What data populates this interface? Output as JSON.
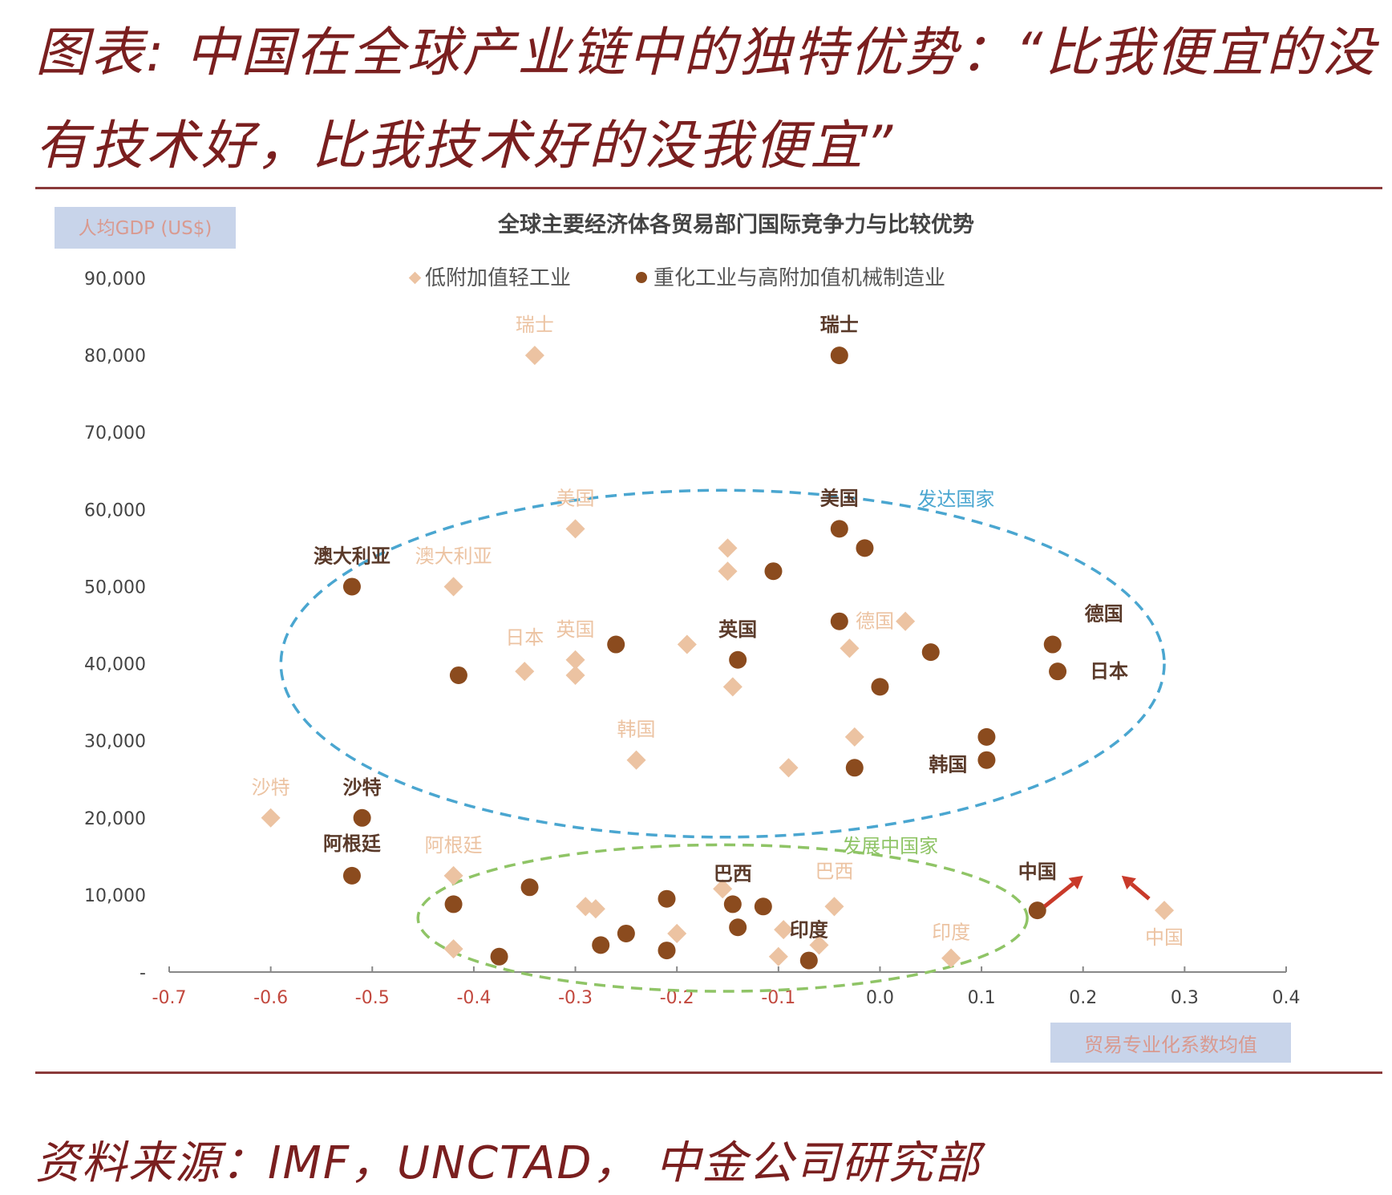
{
  "header": {
    "title": "图表: 中国在全球产业链中的独特优势：“比我便宜的没有技术好，比我技术好的没我便宜”"
  },
  "footer": {
    "source": "资料来源：IMF，UNCTAD， 中金公司研究部"
  },
  "colors": {
    "title": "#7a1f1f",
    "light_series": "#ecc3a2",
    "heavy_series": "#8b4b1e",
    "developed_ellipse": "#4aa6d0",
    "developing_ellipse": "#8fc466",
    "arrow": "#c93a2a",
    "negative_tick": "#c2483e",
    "label_box": "#c8d4ea"
  },
  "chart_data": {
    "type": "scatter",
    "title": "全球主要经济体各贸易部门国际竞争力与比较优势",
    "xlabel": "贸易专业化系数均值",
    "ylabel": "人均GDP (US$)",
    "xlim": [
      -0.7,
      0.4
    ],
    "ylim": [
      0,
      90000
    ],
    "x_ticks": [
      "-0.7",
      "-0.6",
      "-0.5",
      "-0.4",
      "-0.3",
      "-0.2",
      "-0.1",
      "0.0",
      "0.1",
      "0.2",
      "0.3",
      "0.4"
    ],
    "y_ticks": [
      "-",
      "10,000",
      "20,000",
      "30,000",
      "40,000",
      "50,000",
      "60,000",
      "70,000",
      "80,000",
      "90,000"
    ],
    "grid": false,
    "legend_position": "top",
    "series": [
      {
        "name": "低附加值轻工业",
        "marker": "diamond",
        "points": [
          {
            "x": -0.34,
            "y": 80000,
            "label": "瑞士"
          },
          {
            "x": -0.3,
            "y": 57500,
            "label": "美国"
          },
          {
            "x": -0.42,
            "y": 50000,
            "label": "澳大利亚"
          },
          {
            "x": -0.35,
            "y": 39000,
            "label": "日本"
          },
          {
            "x": -0.3,
            "y": 40500,
            "label": "英国"
          },
          {
            "x": -0.3,
            "y": 38500
          },
          {
            "x": -0.24,
            "y": 27500,
            "label": "韩国"
          },
          {
            "x": -0.19,
            "y": 42500
          },
          {
            "x": -0.15,
            "y": 55000
          },
          {
            "x": -0.15,
            "y": 52000
          },
          {
            "x": -0.145,
            "y": 37000
          },
          {
            "x": -0.09,
            "y": 26500
          },
          {
            "x": -0.03,
            "y": 42000
          },
          {
            "x": -0.025,
            "y": 30500
          },
          {
            "x": 0.025,
            "y": 45500,
            "label": "德国"
          },
          {
            "x": -0.6,
            "y": 20000,
            "label": "沙特"
          },
          {
            "x": -0.42,
            "y": 12500,
            "label": "阿根廷"
          },
          {
            "x": -0.42,
            "y": 3000
          },
          {
            "x": -0.29,
            "y": 8500
          },
          {
            "x": -0.28,
            "y": 8200
          },
          {
            "x": -0.2,
            "y": 5000
          },
          {
            "x": -0.155,
            "y": 10800
          },
          {
            "x": -0.045,
            "y": 8500,
            "label": "巴西"
          },
          {
            "x": -0.1,
            "y": 2000
          },
          {
            "x": -0.095,
            "y": 5500
          },
          {
            "x": -0.06,
            "y": 3500
          },
          {
            "x": 0.07,
            "y": 1800,
            "label": "印度"
          },
          {
            "x": 0.28,
            "y": 8000,
            "label": "中国"
          }
        ]
      },
      {
        "name": "重化工业与高附加值机械制造业",
        "marker": "circle",
        "points": [
          {
            "x": -0.04,
            "y": 80000,
            "label": "瑞士"
          },
          {
            "x": -0.04,
            "y": 57500,
            "label": "美国"
          },
          {
            "x": -0.015,
            "y": 55000
          },
          {
            "x": -0.52,
            "y": 50000,
            "label": "澳大利亚"
          },
          {
            "x": -0.105,
            "y": 52000
          },
          {
            "x": -0.04,
            "y": 45500
          },
          {
            "x": -0.14,
            "y": 40500,
            "label": "英国"
          },
          {
            "x": -0.26,
            "y": 42500
          },
          {
            "x": -0.415,
            "y": 38500
          },
          {
            "x": 0.0,
            "y": 37000
          },
          {
            "x": 0.05,
            "y": 41500
          },
          {
            "x": 0.17,
            "y": 42500,
            "label": "德国"
          },
          {
            "x": 0.175,
            "y": 39000,
            "label": "日本"
          },
          {
            "x": 0.105,
            "y": 30500
          },
          {
            "x": 0.105,
            "y": 27500,
            "label": "韩国"
          },
          {
            "x": -0.025,
            "y": 26500
          },
          {
            "x": -0.51,
            "y": 20000,
            "label": "沙特"
          },
          {
            "x": -0.52,
            "y": 12500,
            "label": "阿根廷"
          },
          {
            "x": -0.42,
            "y": 8800
          },
          {
            "x": -0.345,
            "y": 11000
          },
          {
            "x": -0.375,
            "y": 2000
          },
          {
            "x": -0.275,
            "y": 3500
          },
          {
            "x": -0.25,
            "y": 5000
          },
          {
            "x": -0.21,
            "y": 9500
          },
          {
            "x": -0.21,
            "y": 2800
          },
          {
            "x": -0.145,
            "y": 8800,
            "label": "巴西"
          },
          {
            "x": -0.14,
            "y": 5800
          },
          {
            "x": -0.115,
            "y": 8500
          },
          {
            "x": -0.07,
            "y": 1500,
            "label": "印度"
          },
          {
            "x": 0.155,
            "y": 8000,
            "label": "中国"
          }
        ]
      }
    ],
    "annotations": [
      {
        "text": "发达国家",
        "x": 0.075,
        "y": 60500
      },
      {
        "text": "发展中国家",
        "x": 0.01,
        "y": 15500
      }
    ],
    "regions": [
      {
        "name": "发达国家",
        "cx": -0.155,
        "cy": 40000,
        "rx": 0.435,
        "ry": 22500,
        "style": "dashed"
      },
      {
        "name": "发展中国家",
        "cx": -0.155,
        "cy": 7000,
        "rx": 0.3,
        "ry": 9500,
        "style": "dashed"
      }
    ],
    "arrows": [
      {
        "from": [
          0.162,
          8500
        ],
        "to": [
          0.2,
          12500
        ]
      },
      {
        "from": [
          0.265,
          9500
        ],
        "to": [
          0.238,
          12500
        ]
      }
    ]
  }
}
